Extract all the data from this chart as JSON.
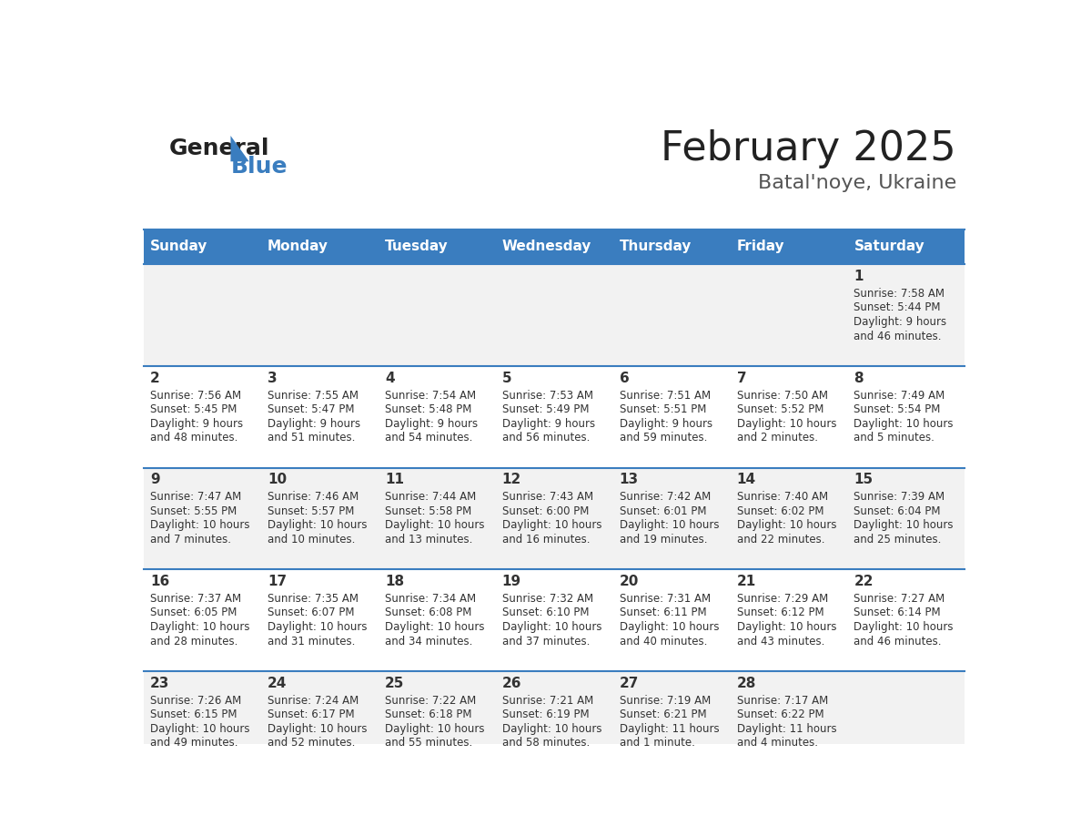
{
  "title": "February 2025",
  "subtitle": "Batal'noye, Ukraine",
  "header_bg_color": "#3a7dbf",
  "header_text_color": "#ffffff",
  "odd_row_bg": "#f2f2f2",
  "even_row_bg": "#ffffff",
  "border_color": "#3a7dbf",
  "text_color": "#333333",
  "days_of_week": [
    "Sunday",
    "Monday",
    "Tuesday",
    "Wednesday",
    "Thursday",
    "Friday",
    "Saturday"
  ],
  "num_cols": 7,
  "num_rows": 5,
  "calendar_data": [
    [
      null,
      null,
      null,
      null,
      null,
      null,
      {
        "day": 1,
        "sunrise": "7:58 AM",
        "sunset": "5:44 PM",
        "daylight_line1": "Daylight: 9 hours",
        "daylight_line2": "and 46 minutes."
      }
    ],
    [
      {
        "day": 2,
        "sunrise": "7:56 AM",
        "sunset": "5:45 PM",
        "daylight_line1": "Daylight: 9 hours",
        "daylight_line2": "and 48 minutes."
      },
      {
        "day": 3,
        "sunrise": "7:55 AM",
        "sunset": "5:47 PM",
        "daylight_line1": "Daylight: 9 hours",
        "daylight_line2": "and 51 minutes."
      },
      {
        "day": 4,
        "sunrise": "7:54 AM",
        "sunset": "5:48 PM",
        "daylight_line1": "Daylight: 9 hours",
        "daylight_line2": "and 54 minutes."
      },
      {
        "day": 5,
        "sunrise": "7:53 AM",
        "sunset": "5:49 PM",
        "daylight_line1": "Daylight: 9 hours",
        "daylight_line2": "and 56 minutes."
      },
      {
        "day": 6,
        "sunrise": "7:51 AM",
        "sunset": "5:51 PM",
        "daylight_line1": "Daylight: 9 hours",
        "daylight_line2": "and 59 minutes."
      },
      {
        "day": 7,
        "sunrise": "7:50 AM",
        "sunset": "5:52 PM",
        "daylight_line1": "Daylight: 10 hours",
        "daylight_line2": "and 2 minutes."
      },
      {
        "day": 8,
        "sunrise": "7:49 AM",
        "sunset": "5:54 PM",
        "daylight_line1": "Daylight: 10 hours",
        "daylight_line2": "and 5 minutes."
      }
    ],
    [
      {
        "day": 9,
        "sunrise": "7:47 AM",
        "sunset": "5:55 PM",
        "daylight_line1": "Daylight: 10 hours",
        "daylight_line2": "and 7 minutes."
      },
      {
        "day": 10,
        "sunrise": "7:46 AM",
        "sunset": "5:57 PM",
        "daylight_line1": "Daylight: 10 hours",
        "daylight_line2": "and 10 minutes."
      },
      {
        "day": 11,
        "sunrise": "7:44 AM",
        "sunset": "5:58 PM",
        "daylight_line1": "Daylight: 10 hours",
        "daylight_line2": "and 13 minutes."
      },
      {
        "day": 12,
        "sunrise": "7:43 AM",
        "sunset": "6:00 PM",
        "daylight_line1": "Daylight: 10 hours",
        "daylight_line2": "and 16 minutes."
      },
      {
        "day": 13,
        "sunrise": "7:42 AM",
        "sunset": "6:01 PM",
        "daylight_line1": "Daylight: 10 hours",
        "daylight_line2": "and 19 minutes."
      },
      {
        "day": 14,
        "sunrise": "7:40 AM",
        "sunset": "6:02 PM",
        "daylight_line1": "Daylight: 10 hours",
        "daylight_line2": "and 22 minutes."
      },
      {
        "day": 15,
        "sunrise": "7:39 AM",
        "sunset": "6:04 PM",
        "daylight_line1": "Daylight: 10 hours",
        "daylight_line2": "and 25 minutes."
      }
    ],
    [
      {
        "day": 16,
        "sunrise": "7:37 AM",
        "sunset": "6:05 PM",
        "daylight_line1": "Daylight: 10 hours",
        "daylight_line2": "and 28 minutes."
      },
      {
        "day": 17,
        "sunrise": "7:35 AM",
        "sunset": "6:07 PM",
        "daylight_line1": "Daylight: 10 hours",
        "daylight_line2": "and 31 minutes."
      },
      {
        "day": 18,
        "sunrise": "7:34 AM",
        "sunset": "6:08 PM",
        "daylight_line1": "Daylight: 10 hours",
        "daylight_line2": "and 34 minutes."
      },
      {
        "day": 19,
        "sunrise": "7:32 AM",
        "sunset": "6:10 PM",
        "daylight_line1": "Daylight: 10 hours",
        "daylight_line2": "and 37 minutes."
      },
      {
        "day": 20,
        "sunrise": "7:31 AM",
        "sunset": "6:11 PM",
        "daylight_line1": "Daylight: 10 hours",
        "daylight_line2": "and 40 minutes."
      },
      {
        "day": 21,
        "sunrise": "7:29 AM",
        "sunset": "6:12 PM",
        "daylight_line1": "Daylight: 10 hours",
        "daylight_line2": "and 43 minutes."
      },
      {
        "day": 22,
        "sunrise": "7:27 AM",
        "sunset": "6:14 PM",
        "daylight_line1": "Daylight: 10 hours",
        "daylight_line2": "and 46 minutes."
      }
    ],
    [
      {
        "day": 23,
        "sunrise": "7:26 AM",
        "sunset": "6:15 PM",
        "daylight_line1": "Daylight: 10 hours",
        "daylight_line2": "and 49 minutes."
      },
      {
        "day": 24,
        "sunrise": "7:24 AM",
        "sunset": "6:17 PM",
        "daylight_line1": "Daylight: 10 hours",
        "daylight_line2": "and 52 minutes."
      },
      {
        "day": 25,
        "sunrise": "7:22 AM",
        "sunset": "6:18 PM",
        "daylight_line1": "Daylight: 10 hours",
        "daylight_line2": "and 55 minutes."
      },
      {
        "day": 26,
        "sunrise": "7:21 AM",
        "sunset": "6:19 PM",
        "daylight_line1": "Daylight: 10 hours",
        "daylight_line2": "and 58 minutes."
      },
      {
        "day": 27,
        "sunrise": "7:19 AM",
        "sunset": "6:21 PM",
        "daylight_line1": "Daylight: 11 hours",
        "daylight_line2": "and 1 minute."
      },
      {
        "day": 28,
        "sunrise": "7:17 AM",
        "sunset": "6:22 PM",
        "daylight_line1": "Daylight: 11 hours",
        "daylight_line2": "and 4 minutes."
      },
      null
    ]
  ],
  "logo_text_general": "General",
  "logo_text_blue": "Blue",
  "title_fontsize": 32,
  "subtitle_fontsize": 16,
  "header_fontsize": 11,
  "day_num_fontsize": 11,
  "cell_text_fontsize": 8.5
}
